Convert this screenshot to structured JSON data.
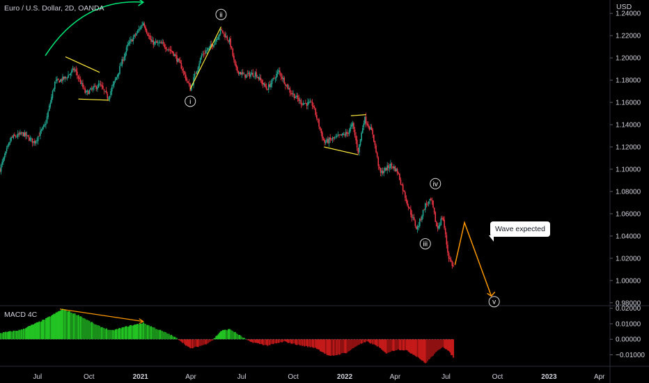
{
  "chart_data": {
    "type": "candlestick",
    "title": "Euro / U.S. Dollar, 2D, OANDA",
    "price_axis": {
      "unit_label": "USD",
      "ticks": [
        "1.24000",
        "1.22000",
        "1.20000",
        "1.18000",
        "1.16000",
        "1.14000",
        "1.12000",
        "1.10000",
        "1.08000",
        "1.06000",
        "1.04000",
        "1.02000",
        "1.00000",
        "0.98000"
      ],
      "range": [
        0.978,
        1.252
      ]
    },
    "time_axis": {
      "ticks": [
        "Jul",
        "Oct",
        "2021",
        "Apr",
        "Jul",
        "Oct",
        "2022",
        "Apr",
        "Jul",
        "Oct",
        "2023",
        "Apr"
      ],
      "range": [
        "2020-04-25",
        "2023-04-20"
      ]
    },
    "price_path": [
      [
        "2020-04-25",
        1.1
      ],
      [
        "2020-05-15",
        1.128
      ],
      [
        "2020-06-05",
        1.132
      ],
      [
        "2020-06-25",
        1.124
      ],
      [
        "2020-07-15",
        1.14
      ],
      [
        "2020-08-01",
        1.178
      ],
      [
        "2020-08-20",
        1.182
      ],
      [
        "2020-09-05",
        1.19
      ],
      [
        "2020-09-25",
        1.168
      ],
      [
        "2020-10-20",
        1.176
      ],
      [
        "2020-11-04",
        1.164
      ],
      [
        "2020-11-20",
        1.184
      ],
      [
        "2020-12-10",
        1.212
      ],
      [
        "2020-12-25",
        1.222
      ],
      [
        "2021-01-06",
        1.232
      ],
      [
        "2021-01-20",
        1.214
      ],
      [
        "2021-02-10",
        1.212
      ],
      [
        "2021-02-28",
        1.205
      ],
      [
        "2021-03-15",
        1.192
      ],
      [
        "2021-03-31",
        1.172
      ],
      [
        "2021-04-20",
        1.202
      ],
      [
        "2021-05-10",
        1.212
      ],
      [
        "2021-05-25",
        1.225
      ],
      [
        "2021-06-10",
        1.214
      ],
      [
        "2021-06-20",
        1.19
      ],
      [
        "2021-07-05",
        1.184
      ],
      [
        "2021-07-25",
        1.186
      ],
      [
        "2021-08-15",
        1.172
      ],
      [
        "2021-09-05",
        1.188
      ],
      [
        "2021-09-25",
        1.17
      ],
      [
        "2021-10-15",
        1.16
      ],
      [
        "2021-11-05",
        1.158
      ],
      [
        "2021-11-25",
        1.124
      ],
      [
        "2021-12-15",
        1.128
      ],
      [
        "2022-01-05",
        1.132
      ],
      [
        "2022-01-15",
        1.14
      ],
      [
        "2022-01-25",
        1.116
      ],
      [
        "2022-02-05",
        1.146
      ],
      [
        "2022-02-20",
        1.132
      ],
      [
        "2022-03-05",
        1.096
      ],
      [
        "2022-03-25",
        1.104
      ],
      [
        "2022-04-05",
        1.098
      ],
      [
        "2022-04-25",
        1.066
      ],
      [
        "2022-05-10",
        1.046
      ],
      [
        "2022-05-25",
        1.068
      ],
      [
        "2022-06-05",
        1.072
      ],
      [
        "2022-06-15",
        1.046
      ],
      [
        "2022-06-25",
        1.058
      ],
      [
        "2022-07-05",
        1.022
      ],
      [
        "2022-07-15",
        1.011
      ]
    ],
    "macd_panel": {
      "label": "MACD 4C",
      "ticks": [
        "0.02000",
        "0.01000",
        "0.00000",
        "−0.01000"
      ],
      "range": [
        -0.0165,
        0.0212
      ],
      "histogram_path": [
        [
          "2020-04-25",
          0.004
        ],
        [
          "2020-06-01",
          0.006
        ],
        [
          "2020-07-15",
          0.013
        ],
        [
          "2020-08-15",
          0.0195
        ],
        [
          "2020-09-15",
          0.015
        ],
        [
          "2020-10-15",
          0.009
        ],
        [
          "2020-11-10",
          0.0055
        ],
        [
          "2020-12-10",
          0.0085
        ],
        [
          "2021-01-06",
          0.0105
        ],
        [
          "2021-01-28",
          0.007
        ],
        [
          "2021-02-20",
          0.0035
        ],
        [
          "2021-03-10",
          0.0
        ],
        [
          "2021-03-31",
          -0.006
        ],
        [
          "2021-04-25",
          -0.0035
        ],
        [
          "2021-05-10",
          -0.0005
        ],
        [
          "2021-05-25",
          0.0055
        ],
        [
          "2021-06-10",
          0.0065
        ],
        [
          "2021-06-25",
          0.003
        ],
        [
          "2021-07-15",
          -0.0015
        ],
        [
          "2021-08-15",
          -0.004
        ],
        [
          "2021-09-15",
          -0.0015
        ],
        [
          "2021-10-15",
          -0.004
        ],
        [
          "2021-11-10",
          -0.0055
        ],
        [
          "2021-12-05",
          -0.011
        ],
        [
          "2022-01-05",
          -0.0085
        ],
        [
          "2022-01-25",
          -0.0035
        ],
        [
          "2022-02-10",
          -0.0015
        ],
        [
          "2022-03-01",
          -0.0045
        ],
        [
          "2022-03-15",
          -0.009
        ],
        [
          "2022-04-05",
          -0.0065
        ],
        [
          "2022-04-20",
          -0.007
        ],
        [
          "2022-05-12",
          -0.0115
        ],
        [
          "2022-05-25",
          -0.0155
        ],
        [
          "2022-06-10",
          -0.0095
        ],
        [
          "2022-06-25",
          -0.0045
        ],
        [
          "2022-07-05",
          -0.0075
        ],
        [
          "2022-07-15",
          -0.012
        ]
      ]
    },
    "wave_labels": [
      {
        "text": "i",
        "date": "2021-03-31",
        "price": 1.161
      },
      {
        "text": "ii",
        "date": "2021-05-25",
        "price": 1.239
      },
      {
        "text": "iii",
        "date": "2022-05-25",
        "price": 1.033
      },
      {
        "text": "iv",
        "date": "2022-06-12",
        "price": 1.087
      },
      {
        "text": "v",
        "date": "2022-09-25",
        "price": 0.981
      }
    ],
    "callout": {
      "text": "Wave expected"
    },
    "projection": [
      [
        "2022-07-17",
        1.014
      ],
      [
        "2022-08-03",
        1.052
      ],
      [
        "2022-09-20",
        0.986
      ]
    ],
    "colors": {
      "up": "#22ab94",
      "down": "#f23645",
      "macd_up": "#1f9e1f",
      "macd_down": "#b01515",
      "projection": "#ff9800",
      "trendline": "#ffeb3b",
      "arrow": "#00e676",
      "text": "#d1d4dc"
    }
  }
}
